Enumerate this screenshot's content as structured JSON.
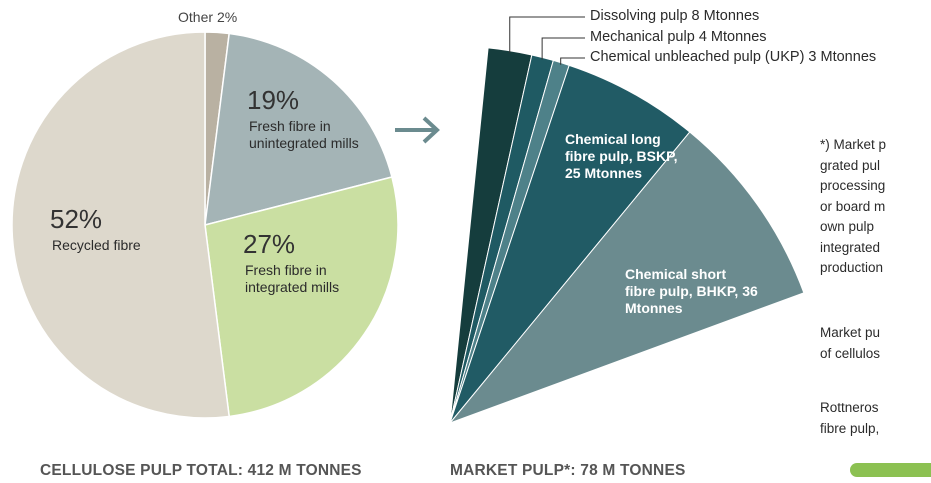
{
  "chart_data": [
    {
      "type": "pie",
      "title": "CELLULOSE PULP TOTAL: 412 M TONNES",
      "categories": [
        "Other",
        "Fresh fibre in unintegrated mills",
        "Fresh fibre in integrated mills",
        "Recycled fibre"
      ],
      "values": [
        2,
        19,
        27,
        52
      ],
      "value_labels": [
        "2%",
        "19%",
        "27%",
        "52%"
      ],
      "colors": [
        "#b9b1a2",
        "#a4b4b6",
        "#cadfa2",
        "#ddd8cc"
      ]
    },
    {
      "type": "fan",
      "title": "MARKET PULP*: 78 M TONNES",
      "labels": [
        "Dissolving pulp 8 Mtonnes",
        "Mechanical pulp 4 Mtonnes",
        "Chemical unbleached pulp (UKP) 3 Mtonnes",
        "Chemical long fibre pulp, BSKP, 25 Mtonnes",
        "Chemical short fibre pulp, BHKP, 36 Mtonnes"
      ],
      "values": [
        8,
        4,
        3,
        25,
        36
      ],
      "colors": [
        "#153d3d",
        "#1f5a63",
        "#4e8189",
        "#215b65",
        "#6b8b8f"
      ]
    }
  ],
  "notes": [
    [
      "*) Market p",
      "grated pul",
      "processing",
      "or board m",
      "own pulp",
      "integrated",
      "production"
    ],
    [
      "Market pu",
      "of cellulos"
    ],
    [
      "Rottneros",
      "fibre pulp,"
    ]
  ]
}
